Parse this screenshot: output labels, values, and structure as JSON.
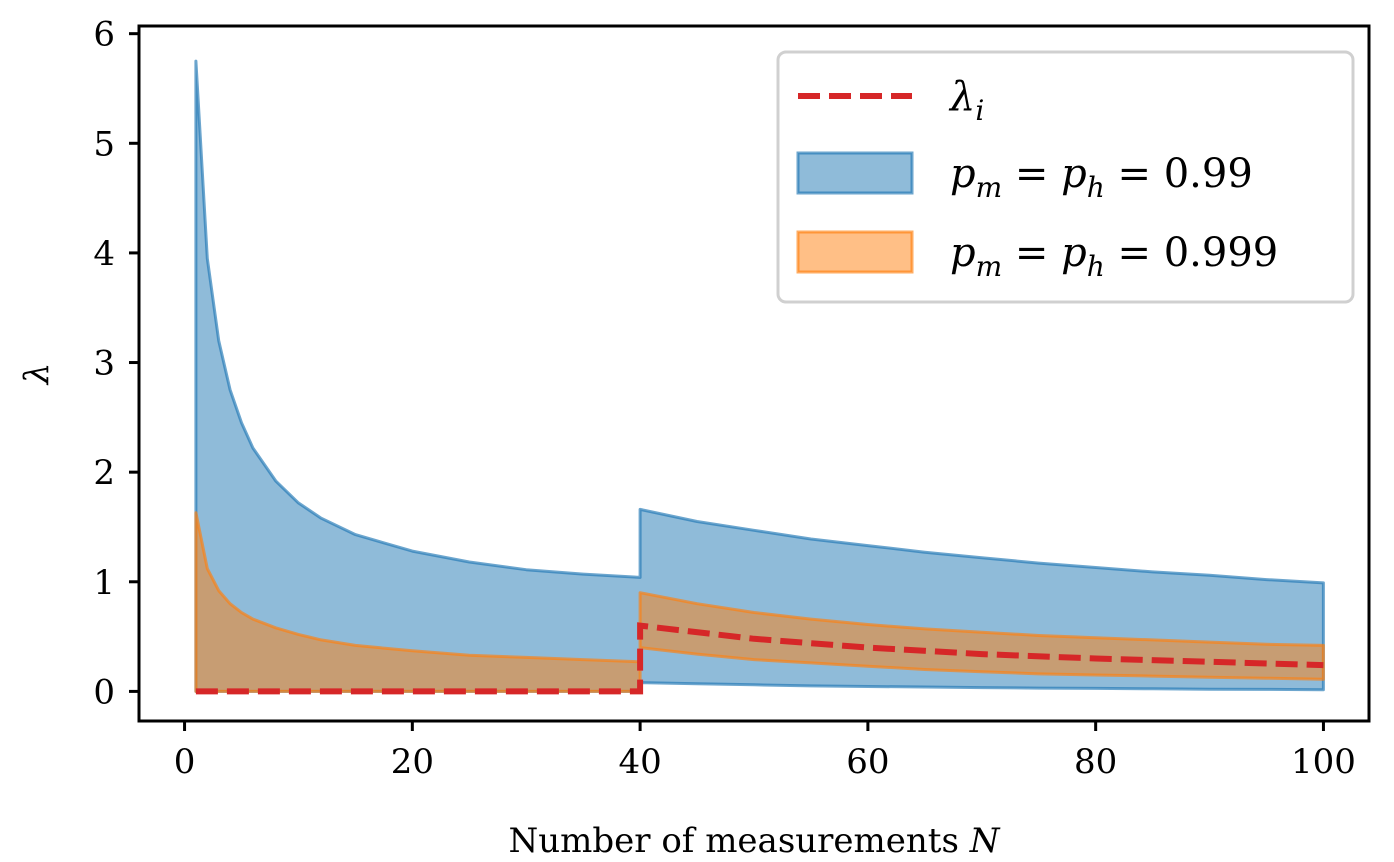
{
  "chart_data": {
    "type": "area",
    "xlabel": "Number of measurements N",
    "ylabel": "λ",
    "xlim": [
      -4,
      104
    ],
    "ylim": [
      -0.27,
      6.07
    ],
    "xticks": [
      0,
      20,
      40,
      60,
      80,
      100
    ],
    "yticks": [
      0,
      1,
      2,
      3,
      4,
      5,
      6
    ],
    "grid": false,
    "legend_position": "top-right",
    "colors": {
      "lambda_line": "#d62728",
      "band_099": "#1f77b4",
      "band_0999": "#ff7f0e"
    },
    "series": [
      {
        "name": "λ_i",
        "kind": "line",
        "style": "dashed",
        "x": [
          1,
          40,
          40,
          50,
          60,
          70,
          80,
          90,
          100
        ],
        "y": [
          0.0,
          0.0,
          0.6,
          0.48,
          0.4,
          0.34,
          0.3,
          0.27,
          0.24
        ]
      },
      {
        "name": "p_m = p_h = 0.99",
        "kind": "band",
        "x": [
          1,
          2,
          3,
          4,
          5,
          6,
          8,
          10,
          12,
          15,
          20,
          25,
          30,
          35,
          40,
          40,
          45,
          50,
          55,
          60,
          65,
          70,
          75,
          80,
          85,
          90,
          95,
          100
        ],
        "upper": [
          5.75,
          3.95,
          3.2,
          2.75,
          2.45,
          2.22,
          1.92,
          1.72,
          1.58,
          1.43,
          1.28,
          1.18,
          1.11,
          1.07,
          1.04,
          1.66,
          1.55,
          1.47,
          1.39,
          1.33,
          1.27,
          1.22,
          1.17,
          1.13,
          1.09,
          1.06,
          1.02,
          0.99
        ],
        "lower": [
          0.0,
          0.0,
          0.0,
          0.0,
          0.0,
          0.0,
          0.0,
          0.0,
          0.0,
          0.0,
          0.0,
          0.0,
          0.0,
          0.0,
          0.0,
          0.08,
          0.07,
          0.06,
          0.05,
          0.045,
          0.04,
          0.035,
          0.03,
          0.027,
          0.024,
          0.02,
          0.018,
          0.015
        ]
      },
      {
        "name": "p_m = p_h = 0.999",
        "kind": "band",
        "x": [
          1,
          2,
          3,
          4,
          5,
          6,
          8,
          10,
          12,
          15,
          20,
          25,
          30,
          35,
          40,
          40,
          45,
          50,
          55,
          60,
          65,
          70,
          75,
          80,
          85,
          90,
          95,
          100
        ],
        "upper": [
          1.63,
          1.12,
          0.92,
          0.8,
          0.72,
          0.66,
          0.58,
          0.52,
          0.47,
          0.42,
          0.37,
          0.33,
          0.31,
          0.29,
          0.27,
          0.9,
          0.8,
          0.72,
          0.66,
          0.61,
          0.57,
          0.54,
          0.51,
          0.49,
          0.47,
          0.45,
          0.43,
          0.42
        ],
        "lower": [
          0.0,
          0.0,
          0.0,
          0.0,
          0.0,
          0.0,
          0.0,
          0.0,
          0.0,
          0.0,
          0.0,
          0.0,
          0.0,
          0.0,
          0.0,
          0.4,
          0.34,
          0.29,
          0.26,
          0.23,
          0.2,
          0.18,
          0.16,
          0.15,
          0.14,
          0.13,
          0.12,
          0.11
        ]
      }
    ],
    "legend": [
      {
        "key": "lambda",
        "base": "λ",
        "sub": "i"
      },
      {
        "key": "b099",
        "text": "p_m = p_h = 0.99"
      },
      {
        "key": "b0999",
        "text": "p_m = p_h = 0.999"
      }
    ]
  }
}
